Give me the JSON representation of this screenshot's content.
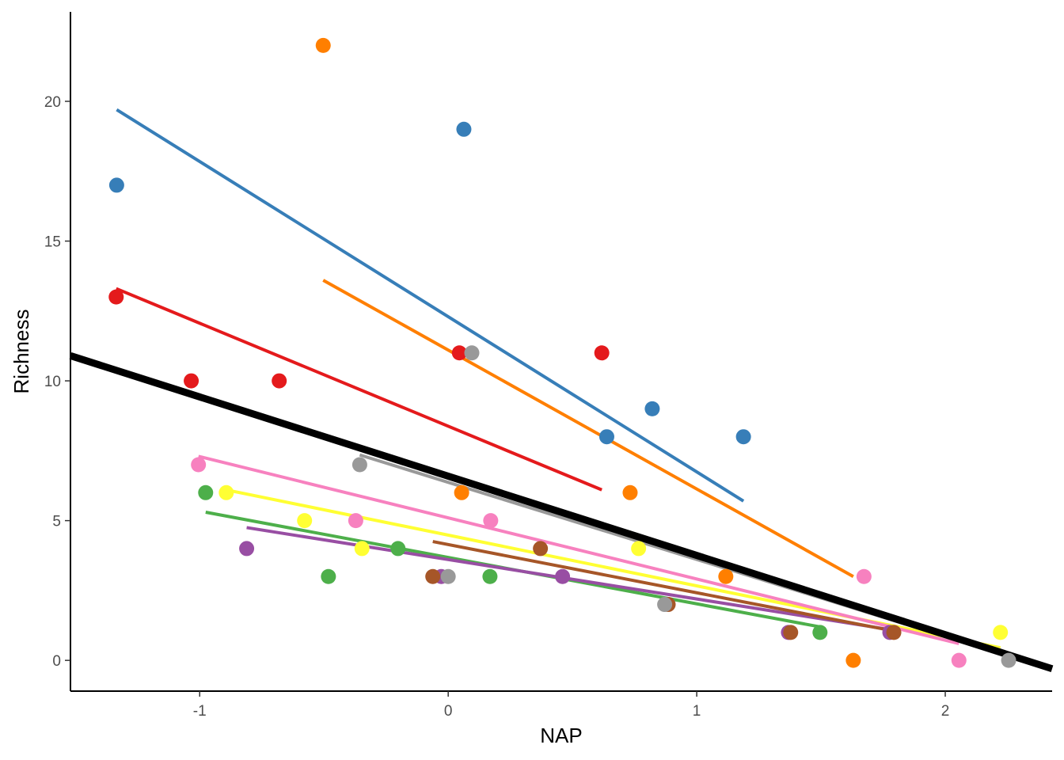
{
  "chart_data": {
    "type": "scatter",
    "title": "",
    "xlabel": "NAP",
    "ylabel": "Richness",
    "xlim": [
      -1.52,
      2.43
    ],
    "ylim": [
      -1.1,
      23.2
    ],
    "x_ticks": [
      -1,
      0,
      1,
      2
    ],
    "x_tick_labels": [
      "-1",
      "0",
      "1",
      "2"
    ],
    "y_ticks": [
      0,
      5,
      10,
      15,
      20
    ],
    "y_tick_labels": [
      "0",
      "5",
      "10",
      "15",
      "20"
    ],
    "grid": false,
    "legend": "none",
    "overall_fit": {
      "color": "#000000",
      "x": [
        -1.52,
        2.43
      ],
      "y": [
        10.9,
        -0.3
      ]
    },
    "series": [
      {
        "color": "#e41a1c",
        "points": [
          [
            -1.336,
            13
          ],
          [
            -1.034,
            10
          ],
          [
            -0.68,
            10
          ],
          [
            0.045,
            11
          ],
          [
            0.618,
            11
          ]
        ],
        "fit": {
          "x": [
            -1.336,
            0.618
          ],
          "y": [
            13.3,
            6.1
          ]
        }
      },
      {
        "color": "#377eb8",
        "points": [
          [
            -1.334,
            17
          ],
          [
            0.063,
            19
          ],
          [
            0.638,
            8
          ],
          [
            0.821,
            9
          ],
          [
            1.188,
            8
          ]
        ],
        "fit": {
          "x": [
            -1.334,
            1.188
          ],
          "y": [
            19.7,
            5.7
          ]
        }
      },
      {
        "color": "#4daf4a",
        "points": [
          [
            -0.976,
            6
          ],
          [
            -0.482,
            3
          ],
          [
            -0.202,
            4
          ],
          [
            0.168,
            3
          ],
          [
            1.496,
            1
          ]
        ],
        "fit": {
          "x": [
            -0.976,
            1.496
          ],
          "y": [
            5.3,
            1.2
          ]
        }
      },
      {
        "color": "#984ea3",
        "points": [
          [
            -0.811,
            4
          ],
          [
            -0.028,
            3
          ],
          [
            0.46,
            3
          ],
          [
            1.369,
            1
          ],
          [
            1.777,
            1
          ]
        ],
        "fit": {
          "x": [
            -0.811,
            1.777
          ],
          "y": [
            4.75,
            1.1
          ]
        }
      },
      {
        "color": "#ff7f00",
        "points": [
          [
            -0.503,
            22
          ],
          [
            0.054,
            6
          ],
          [
            0.732,
            6
          ],
          [
            1.117,
            3
          ],
          [
            1.63,
            0
          ]
        ],
        "fit": {
          "x": [
            -0.503,
            1.63
          ],
          "y": [
            13.6,
            3.0
          ]
        }
      },
      {
        "color": "#ffff33",
        "points": [
          [
            -0.893,
            6
          ],
          [
            -0.578,
            5
          ],
          [
            -0.347,
            4
          ],
          [
            0.766,
            4
          ],
          [
            2.222,
            1
          ]
        ],
        "fit": {
          "x": [
            -0.893,
            2.222
          ],
          "y": [
            6.1,
            0.45
          ]
        }
      },
      {
        "color": "#a65628",
        "points": [
          [
            -0.062,
            3
          ],
          [
            0.371,
            4
          ],
          [
            0.885,
            2
          ],
          [
            1.378,
            1
          ],
          [
            1.793,
            1
          ]
        ],
        "fit": {
          "x": [
            -0.062,
            1.793
          ],
          "y": [
            4.25,
            1.05
          ]
        }
      },
      {
        "color": "#f781bf",
        "points": [
          [
            -1.005,
            7
          ],
          [
            -0.372,
            5
          ],
          [
            0.171,
            5
          ],
          [
            1.673,
            3
          ],
          [
            2.055,
            0
          ]
        ],
        "fit": {
          "x": [
            -1.005,
            2.055
          ],
          "y": [
            7.3,
            0.6
          ]
        }
      },
      {
        "color": "#999999",
        "points": [
          [
            -0.356,
            7
          ],
          [
            0.0,
            3
          ],
          [
            0.095,
            11
          ],
          [
            0.871,
            2
          ],
          [
            2.255,
            0
          ]
        ],
        "fit": {
          "x": [
            -0.356,
            2.255
          ],
          "y": [
            7.35,
            0.15
          ]
        }
      }
    ]
  }
}
